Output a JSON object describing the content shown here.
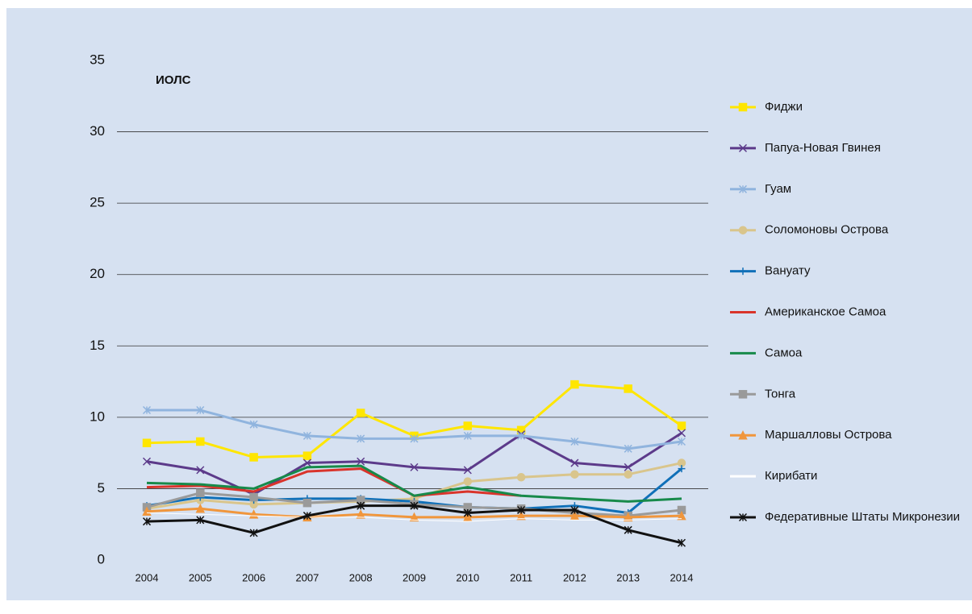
{
  "chart_data": {
    "type": "line",
    "title": "ИОЛС",
    "x": [
      "2004",
      "2005",
      "2006",
      "2007",
      "2008",
      "2009",
      "2010",
      "2011",
      "2012",
      "2013",
      "2014"
    ],
    "ylim": [
      0,
      35
    ],
    "yticks": [
      0,
      5,
      10,
      15,
      20,
      25,
      30,
      35
    ],
    "grid": true,
    "legend": "right",
    "series": [
      {
        "name": "Фиджи",
        "color": "#ffe600",
        "marker": "square",
        "values": [
          8.2,
          8.3,
          7.2,
          7.3,
          10.3,
          8.7,
          9.4,
          9.1,
          12.3,
          12.0,
          9.4
        ]
      },
      {
        "name": "Папуа-Новая Гвинея",
        "color": "#5c3a8a",
        "marker": "x",
        "values": [
          6.9,
          6.3,
          4.6,
          6.8,
          6.9,
          6.5,
          6.3,
          8.8,
          6.8,
          6.5,
          8.9
        ]
      },
      {
        "name": "Гуам",
        "color": "#90b4de",
        "marker": "star",
        "values": [
          10.5,
          10.5,
          9.5,
          8.7,
          8.5,
          8.5,
          8.7,
          8.7,
          8.3,
          7.8,
          8.3
        ]
      },
      {
        "name": "Соломоновы Острова",
        "color": "#d9c58c",
        "marker": "circle",
        "values": [
          3.6,
          4.2,
          3.9,
          4.0,
          4.1,
          4.3,
          5.5,
          5.8,
          6.0,
          6.0,
          6.8
        ]
      },
      {
        "name": "Вануату",
        "color": "#1070b8",
        "marker": "plus",
        "values": [
          3.8,
          4.4,
          4.2,
          4.3,
          4.3,
          4.1,
          3.7,
          3.6,
          3.8,
          3.3,
          6.4
        ]
      },
      {
        "name": "Американское Самоа",
        "color": "#d9342b",
        "marker": "none",
        "values": [
          5.1,
          5.2,
          4.8,
          6.2,
          6.4,
          4.5,
          4.8,
          4.5,
          null,
          null,
          null
        ]
      },
      {
        "name": "Самоа",
        "color": "#178a4a",
        "marker": "none",
        "values": [
          5.4,
          5.3,
          5.0,
          6.5,
          6.6,
          4.5,
          5.1,
          4.5,
          4.3,
          4.1,
          4.3
        ]
      },
      {
        "name": "Тонга",
        "color": "#9a9a9a",
        "marker": "square",
        "values": [
          3.7,
          4.7,
          4.4,
          4.0,
          4.2,
          3.9,
          3.7,
          3.6,
          3.3,
          3.1,
          3.5
        ]
      },
      {
        "name": "Маршалловы Острова",
        "color": "#f0963c",
        "marker": "triangle",
        "values": [
          3.4,
          3.6,
          3.2,
          3.0,
          3.2,
          3.0,
          3.0,
          3.1,
          3.1,
          3.0,
          3.1
        ]
      },
      {
        "name": "Кирибати",
        "color": "#ffffff",
        "marker": "none",
        "values": [
          3.3,
          3.2,
          3.1,
          3.0,
          3.0,
          2.8,
          2.7,
          2.9,
          2.8,
          2.8,
          2.9
        ]
      },
      {
        "name": "Федеративные Штаты Микронезии",
        "color": "#111111",
        "marker": "star",
        "values": [
          2.7,
          2.8,
          1.9,
          3.1,
          3.8,
          3.8,
          3.3,
          3.5,
          3.5,
          2.1,
          1.2
        ]
      }
    ]
  }
}
